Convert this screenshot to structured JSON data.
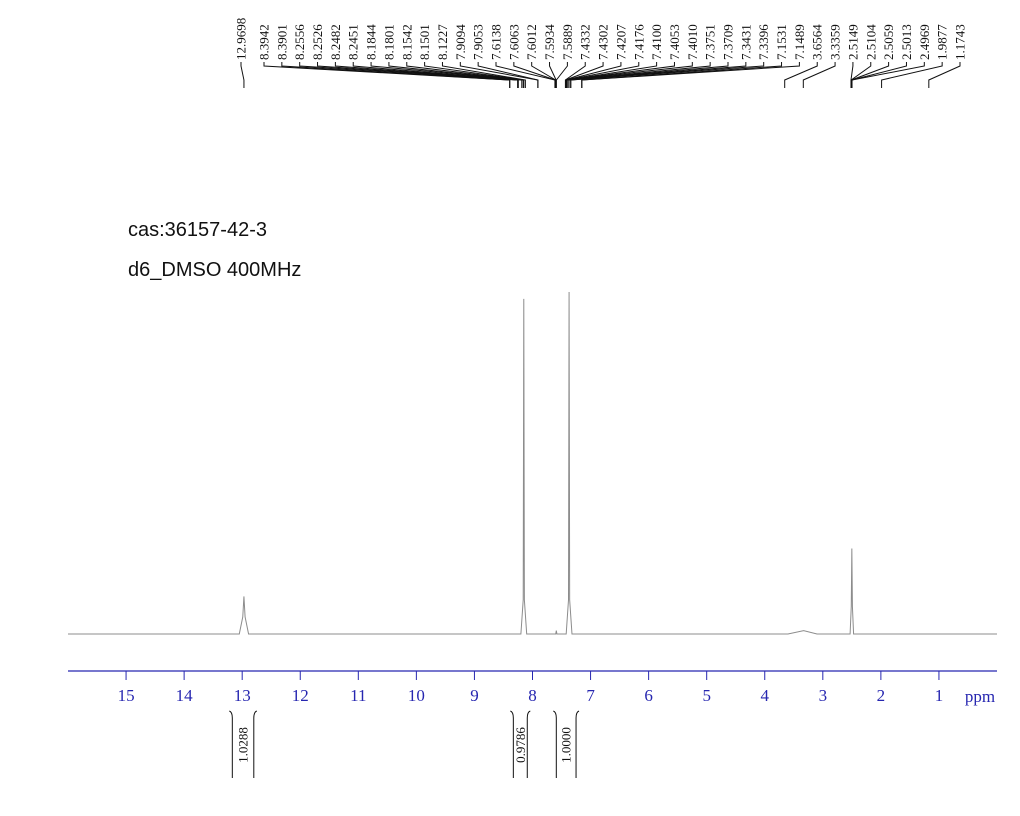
{
  "chart_data": {
    "type": "nmr",
    "title": "cas:36157-42-3",
    "subtitle": "d6_DMSO 400MHz",
    "x_label": "ppm",
    "xlim": [
      16,
      0
    ],
    "xticks": [
      15,
      14,
      13,
      12,
      11,
      10,
      9,
      8,
      7,
      6,
      5,
      4,
      3,
      2,
      1
    ],
    "ylim": [
      0,
      100
    ],
    "x": [
      16,
      13.05,
      12.99,
      12.97,
      12.95,
      12.89,
      8.2,
      8.16,
      8.15,
      8.14,
      8.1,
      7.6,
      7.59,
      7.58,
      7.42,
      7.38,
      7.37,
      7.36,
      7.32,
      3.6,
      3.33,
      3.1,
      2.53,
      2.51,
      2.5,
      2.49,
      2.47,
      0
    ],
    "values": [
      0,
      0,
      5,
      11,
      5,
      0,
      0,
      10,
      98,
      10,
      0,
      0,
      1,
      0,
      0,
      10,
      100,
      10,
      0,
      0,
      1,
      0,
      0,
      8,
      25,
      8,
      0,
      0
    ],
    "color": "#8c8c8c",
    "axis_color": "#2626b0",
    "peak_labels": [
      "12.9698",
      "8.3942",
      "8.3901",
      "8.2556",
      "8.2526",
      "8.2482",
      "8.2451",
      "8.1844",
      "8.1801",
      "8.1542",
      "8.1501",
      "8.1227",
      "7.9094",
      "7.9053",
      "7.6138",
      "7.6063",
      "7.6012",
      "7.5934",
      "7.5889",
      "7.4332",
      "7.4302",
      "7.4207",
      "7.4176",
      "7.4100",
      "7.4053",
      "7.4010",
      "7.3751",
      "7.3709",
      "7.3431",
      "7.3396",
      "7.1531",
      "7.1489",
      "3.6564",
      "3.3359",
      "2.5149",
      "2.5104",
      "2.5059",
      "2.5013",
      "2.4969",
      "1.9877",
      "1.1743"
    ],
    "integrals": {
      "ranges": [
        [
          13.17,
          12.8
        ],
        [
          8.33,
          8.09
        ],
        [
          7.59,
          7.25
        ]
      ],
      "values": [
        1.0288,
        0.9786,
        1
      ],
      "value_labels": [
        "1.0288",
        "0.9786",
        "1.0000"
      ]
    }
  }
}
